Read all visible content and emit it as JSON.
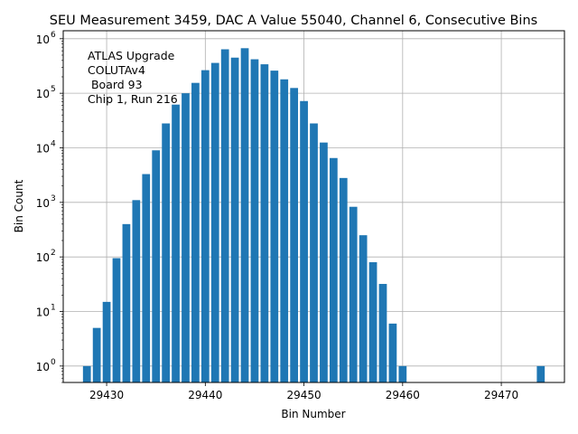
{
  "chart_data": {
    "type": "bar",
    "title": "SEU Measurement 3459, DAC A Value 55040, Channel 6, Consecutive Bins",
    "xlabel": "Bin Number",
    "ylabel": "Bin Count",
    "yscale": "log",
    "xlim": [
      29425.6,
      29476.4
    ],
    "ylim": [
      0.5,
      1400000
    ],
    "grid": true,
    "bar_color": "#1f77b4",
    "x_ticks": [
      29430,
      29440,
      29450,
      29460,
      29470
    ],
    "y_ticks": [
      {
        "value": 1,
        "base": "10",
        "exp": "0"
      },
      {
        "value": 10,
        "base": "10",
        "exp": "1"
      },
      {
        "value": 100,
        "base": "10",
        "exp": "2"
      },
      {
        "value": 1000,
        "base": "10",
        "exp": "3"
      },
      {
        "value": 10000,
        "base": "10",
        "exp": "4"
      },
      {
        "value": 100000,
        "base": "10",
        "exp": "5"
      },
      {
        "value": 1000000,
        "base": "10",
        "exp": "6"
      }
    ],
    "annotation": [
      "ATLAS Upgrade",
      "COLUTAv4",
      " Board 93",
      "Chip 1, Run 216"
    ],
    "bars": [
      {
        "x": 29428,
        "y": 1
      },
      {
        "x": 29429,
        "y": 5
      },
      {
        "x": 29430,
        "y": 15
      },
      {
        "x": 29431,
        "y": 95
      },
      {
        "x": 29432,
        "y": 400
      },
      {
        "x": 29433,
        "y": 1100
      },
      {
        "x": 29434,
        "y": 3300
      },
      {
        "x": 29435,
        "y": 9000
      },
      {
        "x": 29436,
        "y": 28000
      },
      {
        "x": 29437,
        "y": 62000
      },
      {
        "x": 29438,
        "y": 100000
      },
      {
        "x": 29439,
        "y": 155000
      },
      {
        "x": 29440,
        "y": 265000
      },
      {
        "x": 29441,
        "y": 360000
      },
      {
        "x": 29442,
        "y": 640000
      },
      {
        "x": 29443,
        "y": 450000
      },
      {
        "x": 29444,
        "y": 670000
      },
      {
        "x": 29445,
        "y": 420000
      },
      {
        "x": 29446,
        "y": 340000
      },
      {
        "x": 29447,
        "y": 260000
      },
      {
        "x": 29448,
        "y": 180000
      },
      {
        "x": 29449,
        "y": 125000
      },
      {
        "x": 29450,
        "y": 72000
      },
      {
        "x": 29451,
        "y": 28000
      },
      {
        "x": 29452,
        "y": 12500
      },
      {
        "x": 29453,
        "y": 6500
      },
      {
        "x": 29454,
        "y": 2800
      },
      {
        "x": 29455,
        "y": 830
      },
      {
        "x": 29456,
        "y": 250
      },
      {
        "x": 29457,
        "y": 80
      },
      {
        "x": 29458,
        "y": 32
      },
      {
        "x": 29459,
        "y": 6
      },
      {
        "x": 29460,
        "y": 1
      },
      {
        "x": 29474,
        "y": 1
      }
    ]
  }
}
